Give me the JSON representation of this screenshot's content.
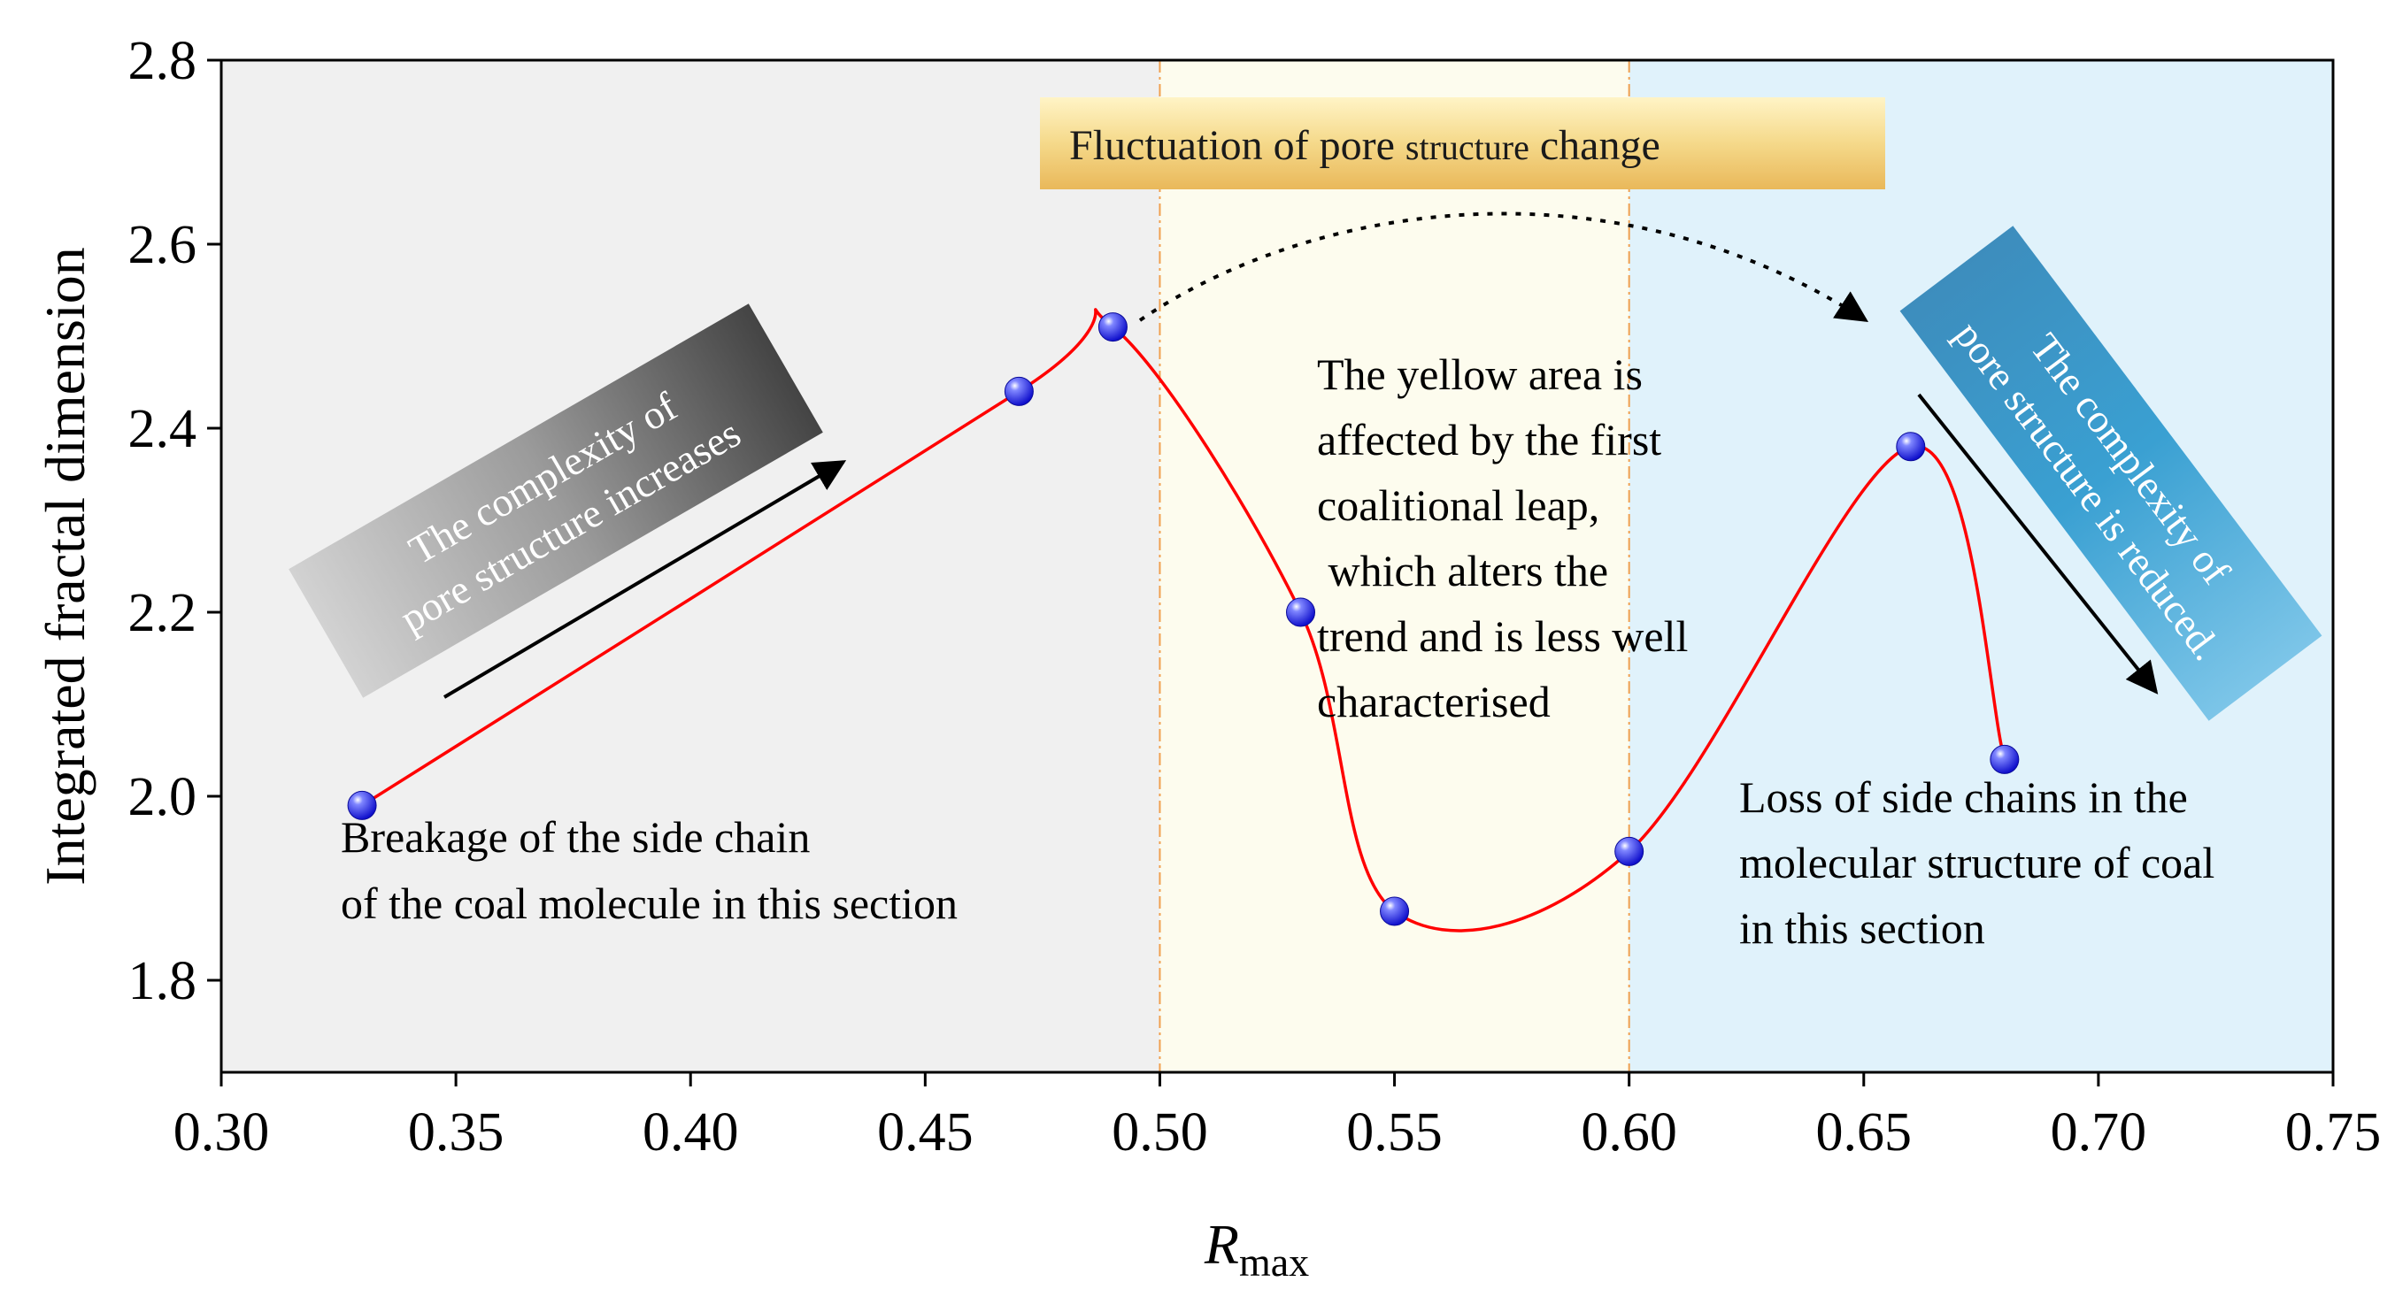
{
  "chart_data": {
    "type": "line",
    "x": [
      0.33,
      0.47,
      0.49,
      0.53,
      0.55,
      0.6,
      0.66,
      0.68
    ],
    "y": [
      1.99,
      2.44,
      2.51,
      2.2,
      1.875,
      1.94,
      2.38,
      2.04
    ],
    "xlabel_main": "R",
    "xlabel_sub": "max",
    "ylabel": "Integrated fractal dimension",
    "xlim": [
      0.3,
      0.75
    ],
    "ylim": [
      1.7,
      2.8
    ],
    "x_ticks": [
      0.3,
      0.35,
      0.4,
      0.45,
      0.5,
      0.55,
      0.6,
      0.65,
      0.7,
      0.75
    ],
    "x_tick_labels": [
      "0.30",
      "0.35",
      "0.40",
      "0.45",
      "0.50",
      "0.55",
      "0.60",
      "0.65",
      "0.70",
      "0.75"
    ],
    "y_ticks": [
      1.8,
      2.0,
      2.2,
      2.4,
      2.6,
      2.8
    ],
    "y_tick_labels": [
      "1.8",
      "2.0",
      "2.2",
      "2.4",
      "2.6",
      "2.8"
    ],
    "regions": [
      {
        "name": "gray",
        "x_range": [
          0.3,
          0.5
        ],
        "color": "#f0f0f0"
      },
      {
        "name": "yellow",
        "x_range": [
          0.5,
          0.6
        ],
        "color": "#fdfcee"
      },
      {
        "name": "blue",
        "x_range": [
          0.6,
          0.75
        ],
        "color": "#e0f2fb"
      }
    ],
    "region_dividers": [
      0.5,
      0.6
    ],
    "colors": {
      "curve": "#ff0000",
      "marker": "#1a1aff",
      "divider": "#f0a050"
    },
    "banner": {
      "prefix": "Fluctuation of pore ",
      "small": "structure",
      "suffix": " change"
    },
    "annotations": {
      "left_box": [
        "The complexity of",
        "pore structure increases"
      ],
      "right_box": [
        "The complexity of",
        "pore structure is reduced."
      ],
      "left_text": [
        "Breakage of the side chain",
        "of the coal molecule in this section"
      ],
      "middle_text": [
        "The yellow area is",
        "affected by the first",
        "coalitional leap,",
        " which alters the",
        "trend and is less well",
        "characterised"
      ],
      "right_text": [
        "Loss of side chains in the",
        "molecular structure of coal",
        "in this section"
      ]
    }
  }
}
